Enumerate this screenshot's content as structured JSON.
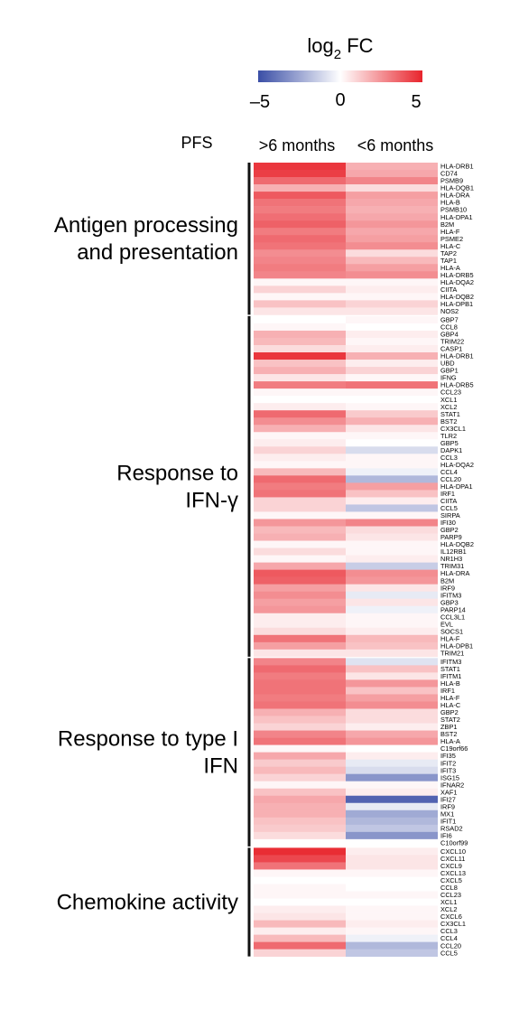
{
  "chart_data": {
    "type": "heatmap",
    "legend": {
      "title_main": "log",
      "title_sub": "2",
      "title_rest": " FC",
      "min": -5,
      "mid": 0,
      "max": 5,
      "tick_labels": [
        "–5",
        "0",
        "5"
      ],
      "colors": {
        "low": "#3a4ea6",
        "mid": "#ffffff",
        "high": "#e8242c"
      }
    },
    "row_header": "PFS",
    "columns": [
      ">6 months",
      "<6 months"
    ],
    "groups": [
      {
        "name_lines": [
          "Antigen processing",
          "and presentation"
        ],
        "rows": [
          {
            "gene": "HLA-DRB1",
            "values": [
              4.6,
              1.8
            ]
          },
          {
            "gene": "CD74",
            "values": [
              4.4,
              2.0
            ]
          },
          {
            "gene": "PSMB9",
            "values": [
              3.4,
              2.8
            ]
          },
          {
            "gene": "HLA-DQB1",
            "values": [
              1.8,
              0.8
            ]
          },
          {
            "gene": "HLA-DRA",
            "values": [
              3.8,
              2.2
            ]
          },
          {
            "gene": "HLA-B",
            "values": [
              3.2,
              2.0
            ]
          },
          {
            "gene": "PSMB10",
            "values": [
              3.0,
              1.8
            ]
          },
          {
            "gene": "HLA-DPA1",
            "values": [
              3.3,
              2.0
            ]
          },
          {
            "gene": "B2M",
            "values": [
              3.6,
              2.4
            ]
          },
          {
            "gene": "HLA-F",
            "values": [
              3.0,
              2.0
            ]
          },
          {
            "gene": "PSME2",
            "values": [
              3.4,
              2.2
            ]
          },
          {
            "gene": "HLA-C",
            "values": [
              3.2,
              2.6
            ]
          },
          {
            "gene": "TAP2",
            "values": [
              2.6,
              0.8
            ]
          },
          {
            "gene": "TAP1",
            "values": [
              2.8,
              1.6
            ]
          },
          {
            "gene": "HLA-A",
            "values": [
              3.0,
              2.2
            ]
          },
          {
            "gene": "HLA-DRB5",
            "values": [
              2.8,
              2.6
            ]
          },
          {
            "gene": "HLA-DQA2",
            "values": [
              0.2,
              0.2
            ]
          },
          {
            "gene": "CIITA",
            "values": [
              1.0,
              0.4
            ]
          },
          {
            "gene": "HLA-DQB2",
            "values": [
              0.2,
              0.2
            ]
          },
          {
            "gene": "HLA-DPB1",
            "values": [
              1.4,
              1.0
            ]
          },
          {
            "gene": "NOS2",
            "values": [
              0.6,
              0.6
            ]
          }
        ]
      },
      {
        "name_lines": [
          "Response to",
          "IFN-γ"
        ],
        "rows": [
          {
            "gene": "GBP7",
            "values": [
              0.0,
              0.2
            ]
          },
          {
            "gene": "CCL8",
            "values": [
              0.2,
              0.0
            ]
          },
          {
            "gene": "GBP4",
            "values": [
              1.8,
              0.4
            ]
          },
          {
            "gene": "TRIM22",
            "values": [
              1.6,
              0.2
            ]
          },
          {
            "gene": "CASP1",
            "values": [
              0.8,
              0.4
            ]
          },
          {
            "gene": "HLA-DRB1",
            "values": [
              4.6,
              1.8
            ]
          },
          {
            "gene": "UBD",
            "values": [
              1.4,
              0.4
            ]
          },
          {
            "gene": "GBP1",
            "values": [
              1.8,
              1.0
            ]
          },
          {
            "gene": "IFNG",
            "values": [
              0.6,
              0.2
            ]
          },
          {
            "gene": "HLA-DRB5",
            "values": [
              3.0,
              3.2
            ]
          },
          {
            "gene": "CCL23",
            "values": [
              0.2,
              0.2
            ]
          },
          {
            "gene": "XCL1",
            "values": [
              0.0,
              0.0
            ]
          },
          {
            "gene": "XCL2",
            "values": [
              0.4,
              0.2
            ]
          },
          {
            "gene": "STAT1",
            "values": [
              3.4,
              1.2
            ]
          },
          {
            "gene": "BST2",
            "values": [
              2.6,
              1.8
            ]
          },
          {
            "gene": "CX3CL1",
            "values": [
              1.8,
              0.6
            ]
          },
          {
            "gene": "TLR2",
            "values": [
              0.2,
              0.2
            ]
          },
          {
            "gene": "GBP5",
            "values": [
              0.4,
              0.0
            ]
          },
          {
            "gene": "DAPK1",
            "values": [
              1.0,
              -1.0
            ]
          },
          {
            "gene": "CCL3",
            "values": [
              0.4,
              0.2
            ]
          },
          {
            "gene": "HLA-DQA2",
            "values": [
              0.2,
              0.2
            ]
          },
          {
            "gene": "CCL4",
            "values": [
              1.6,
              -0.4
            ]
          },
          {
            "gene": "CCL20",
            "values": [
              3.4,
              -2.0
            ]
          },
          {
            "gene": "HLA-DPA1",
            "values": [
              3.0,
              2.2
            ]
          },
          {
            "gene": "IRF1",
            "values": [
              3.2,
              1.4
            ]
          },
          {
            "gene": "CIITA",
            "values": [
              1.0,
              0.4
            ]
          },
          {
            "gene": "CCL5",
            "values": [
              1.0,
              -1.6
            ]
          },
          {
            "gene": "SIRPA",
            "values": [
              0.2,
              0.2
            ]
          },
          {
            "gene": "IFI30",
            "values": [
              2.4,
              2.8
            ]
          },
          {
            "gene": "GBP2",
            "values": [
              1.6,
              0.8
            ]
          },
          {
            "gene": "PARP9",
            "values": [
              1.8,
              0.6
            ]
          },
          {
            "gene": "HLA-DQB2",
            "values": [
              0.2,
              0.2
            ]
          },
          {
            "gene": "IL12RB1",
            "values": [
              0.8,
              0.2
            ]
          },
          {
            "gene": "NR1H3",
            "values": [
              0.2,
              0.4
            ]
          },
          {
            "gene": "TRIM31",
            "values": [
              2.0,
              -1.4
            ]
          },
          {
            "gene": "HLA-DRA",
            "values": [
              3.8,
              2.6
            ]
          },
          {
            "gene": "B2M",
            "values": [
              3.6,
              2.4
            ]
          },
          {
            "gene": "IRF9",
            "values": [
              2.2,
              0.6
            ]
          },
          {
            "gene": "IFITM3",
            "values": [
              2.6,
              -0.6
            ]
          },
          {
            "gene": "GBP3",
            "values": [
              2.2,
              0.6
            ]
          },
          {
            "gene": "PARP14",
            "values": [
              2.4,
              -0.4
            ]
          },
          {
            "gene": "CCL3L1",
            "values": [
              0.4,
              0.2
            ]
          },
          {
            "gene": "EVL",
            "values": [
              0.4,
              0.2
            ]
          },
          {
            "gene": "SOCS1",
            "values": [
              0.8,
              0.4
            ]
          },
          {
            "gene": "HLA-F",
            "values": [
              3.2,
              1.6
            ]
          },
          {
            "gene": "HLA-DPB1",
            "values": [
              2.2,
              1.4
            ]
          },
          {
            "gene": "TRIM21",
            "values": [
              0.6,
              0.6
            ]
          }
        ]
      },
      {
        "name_lines": [
          "Response to type I",
          "IFN"
        ],
        "rows": [
          {
            "gene": "IFITM3",
            "values": [
              2.8,
              -0.8
            ]
          },
          {
            "gene": "STAT1",
            "values": [
              3.4,
              1.4
            ]
          },
          {
            "gene": "IFITM1",
            "values": [
              3.0,
              0.6
            ]
          },
          {
            "gene": "HLA-B",
            "values": [
              3.2,
              2.4
            ]
          },
          {
            "gene": "IRF1",
            "values": [
              3.2,
              1.4
            ]
          },
          {
            "gene": "HLA-F",
            "values": [
              3.0,
              2.2
            ]
          },
          {
            "gene": "HLA-C",
            "values": [
              3.2,
              2.6
            ]
          },
          {
            "gene": "GBP2",
            "values": [
              1.8,
              0.8
            ]
          },
          {
            "gene": "STAT2",
            "values": [
              1.4,
              0.8
            ]
          },
          {
            "gene": "ZBP1",
            "values": [
              1.0,
              0.4
            ]
          },
          {
            "gene": "BST2",
            "values": [
              2.8,
              2.0
            ]
          },
          {
            "gene": "HLA-A",
            "values": [
              3.2,
              2.4
            ]
          },
          {
            "gene": "C19orf66",
            "values": [
              0.2,
              0.0
            ]
          },
          {
            "gene": "IFI35",
            "values": [
              2.0,
              0.4
            ]
          },
          {
            "gene": "IFIT2",
            "values": [
              1.2,
              -0.6
            ]
          },
          {
            "gene": "IFIT3",
            "values": [
              1.6,
              -1.0
            ]
          },
          {
            "gene": "ISG15",
            "values": [
              1.0,
              -3.0
            ]
          },
          {
            "gene": "IFNAR2",
            "values": [
              0.2,
              0.2
            ]
          },
          {
            "gene": "XAF1",
            "values": [
              1.4,
              0.4
            ]
          },
          {
            "gene": "IFI27",
            "values": [
              2.0,
              -4.4
            ]
          },
          {
            "gene": "IRF9",
            "values": [
              1.8,
              -0.6
            ]
          },
          {
            "gene": "MX1",
            "values": [
              1.8,
              -2.4
            ]
          },
          {
            "gene": "IFIT1",
            "values": [
              1.4,
              -2.0
            ]
          },
          {
            "gene": "RSAD2",
            "values": [
              1.2,
              -1.6
            ]
          },
          {
            "gene": "IFI6",
            "values": [
              0.8,
              -3.0
            ]
          },
          {
            "gene": "C10orf99",
            "values": [
              0.0,
              0.0
            ]
          }
        ]
      },
      {
        "name_lines": [
          "Chemokine activity"
        ],
        "rows": [
          {
            "gene": "CXCL10",
            "values": [
              4.8,
              0.4
            ]
          },
          {
            "gene": "CXCL11",
            "values": [
              4.2,
              0.6
            ]
          },
          {
            "gene": "CXCL9",
            "values": [
              3.2,
              0.6
            ]
          },
          {
            "gene": "CXCL13",
            "values": [
              0.2,
              0.2
            ]
          },
          {
            "gene": "CXCL5",
            "values": [
              0.0,
              0.0
            ]
          },
          {
            "gene": "CCL8",
            "values": [
              0.2,
              0.0
            ]
          },
          {
            "gene": "CCL23",
            "values": [
              0.2,
              0.2
            ]
          },
          {
            "gene": "XCL1",
            "values": [
              0.0,
              0.0
            ]
          },
          {
            "gene": "XCL2",
            "values": [
              0.4,
              0.2
            ]
          },
          {
            "gene": "CXCL6",
            "values": [
              0.6,
              0.2
            ]
          },
          {
            "gene": "CX3CL1",
            "values": [
              1.6,
              0.4
            ]
          },
          {
            "gene": "CCL3",
            "values": [
              0.4,
              0.2
            ]
          },
          {
            "gene": "CCL4",
            "values": [
              1.6,
              -0.4
            ]
          },
          {
            "gene": "CCL20",
            "values": [
              3.4,
              -2.0
            ]
          },
          {
            "gene": "CCL5",
            "values": [
              1.0,
              -1.6
            ]
          }
        ]
      }
    ]
  }
}
